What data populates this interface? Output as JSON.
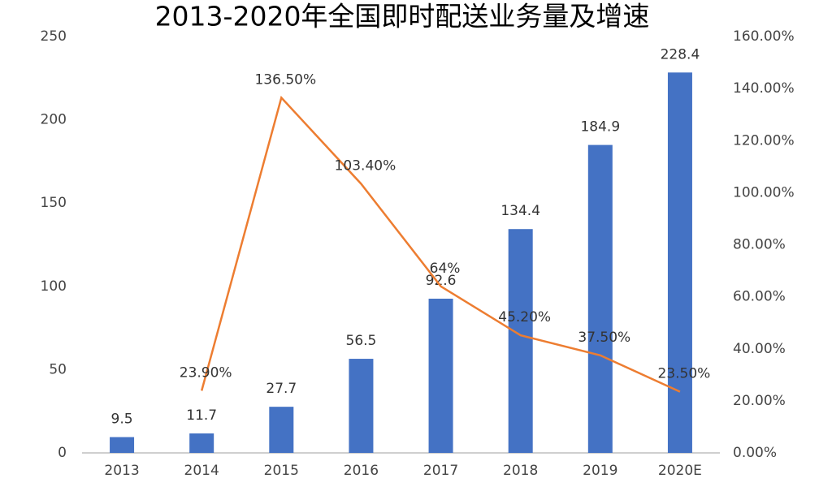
{
  "chart_data": {
    "type": "bar",
    "title": "2013-2020年全国即时配送业务量及增速",
    "categories": [
      "2013",
      "2014",
      "2015",
      "2016",
      "2017",
      "2018",
      "2019",
      "2020E"
    ],
    "series": [
      {
        "type": "bar",
        "color": "#4472c4",
        "values": [
          9.5,
          11.7,
          27.7,
          56.5,
          92.6,
          134.4,
          184.9,
          228.4
        ]
      },
      {
        "type": "line",
        "axis": "y2",
        "color": "#ed7d31",
        "values": [
          null,
          23.9,
          136.5,
          103.4,
          64,
          45.2,
          37.5,
          23.5
        ],
        "value_labels": [
          null,
          "23.90%",
          "136.50%",
          "103.40%",
          "64%",
          "45.20%",
          "37.50%",
          "23.50%"
        ]
      }
    ],
    "ylim": [
      0,
      250
    ],
    "yticks": [
      0,
      50,
      100,
      150,
      200,
      250
    ],
    "y2lim": [
      0,
      160
    ],
    "y2ticks": [
      {
        "value": 0,
        "label": "0.00%"
      },
      {
        "value": 20,
        "label": "20.00%"
      },
      {
        "value": 40,
        "label": "40.00%"
      },
      {
        "value": 60,
        "label": "60.00%"
      },
      {
        "value": 80,
        "label": "80.00%"
      },
      {
        "value": 100,
        "label": "100.00%"
      },
      {
        "value": 120,
        "label": "120.00%"
      },
      {
        "value": 140,
        "label": "140.00%"
      },
      {
        "value": 160,
        "label": "160.00%"
      }
    ],
    "grid": false
  }
}
